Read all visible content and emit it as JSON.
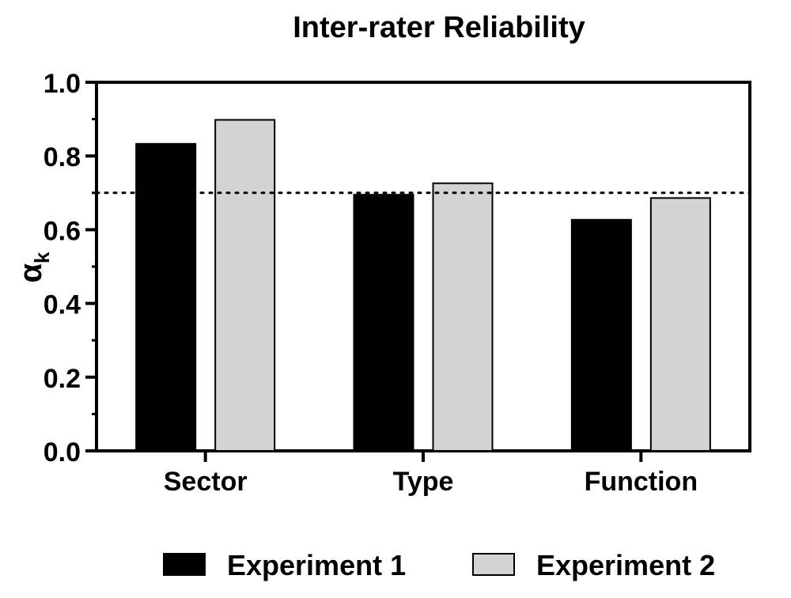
{
  "chart_data": {
    "type": "bar",
    "title": "Inter-rater Reliability",
    "ylabel_main": "α",
    "ylabel_sub": "k",
    "categories": [
      "Sector",
      "Type",
      "Function"
    ],
    "series": [
      {
        "name": "Experiment 1",
        "color": "#000000",
        "values": [
          0.833,
          0.695,
          0.627
        ]
      },
      {
        "name": "Experiment 2",
        "color": "#d3d3d3",
        "values": [
          0.898,
          0.726,
          0.686
        ]
      }
    ],
    "ylim": [
      0,
      1.0
    ],
    "yticks": [
      "0.0",
      "0.2",
      "0.4",
      "0.6",
      "0.8",
      "1.0"
    ],
    "reference_line": {
      "value": 0.7,
      "style": "dotted"
    },
    "legend_placement": "bottom",
    "grid": false
  }
}
